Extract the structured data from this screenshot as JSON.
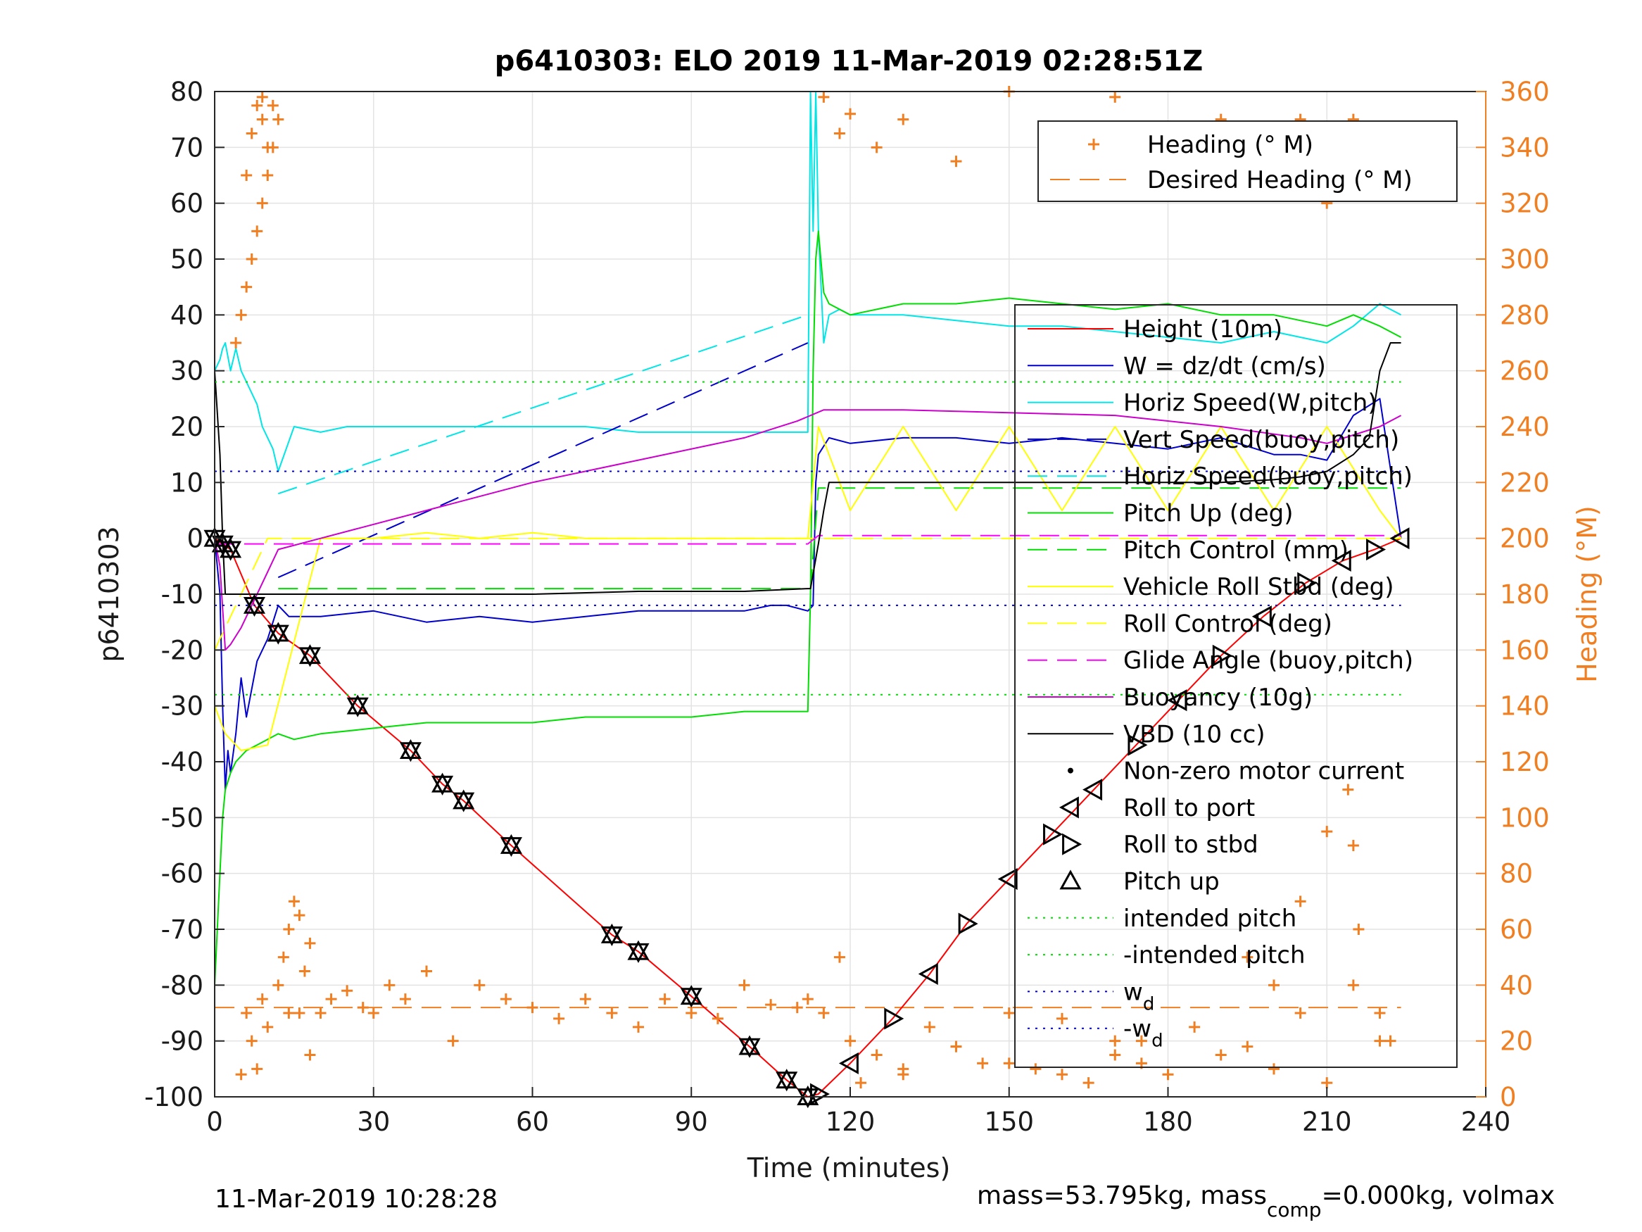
{
  "chart_data": {
    "type": "line",
    "title": "p6410303: ELO 2019 11-Mar-2019 02:28:51Z",
    "xlabel": "Time (minutes)",
    "ylabel": "p6410303",
    "y2label": "Heading (°M)",
    "xlim": [
      0,
      240
    ],
    "ylim": [
      -100,
      80
    ],
    "y2lim": [
      0,
      360
    ],
    "x_ticks": [
      "0",
      "30",
      "60",
      "90",
      "120",
      "150",
      "180",
      "210",
      "240"
    ],
    "y_ticks": [
      "80",
      "70",
      "60",
      "50",
      "40",
      "30",
      "20",
      "10",
      "0",
      "-10",
      "-20",
      "-30",
      "-40",
      "-50",
      "-60",
      "-70",
      "-80",
      "-90",
      "-100"
    ],
    "y2_ticks": [
      "360",
      "340",
      "320",
      "300",
      "280",
      "260",
      "240",
      "220",
      "200",
      "180",
      "160",
      "140",
      "120",
      "100",
      "80",
      "60",
      "40",
      "20",
      "0"
    ],
    "grid": true,
    "legend_top": [
      {
        "label": "Heading (° M)",
        "color": "#f07f22",
        "style": "plus"
      },
      {
        "label": "Desired Heading (° M)",
        "color": "#f07f22",
        "style": "dashed"
      }
    ],
    "legend_main": [
      {
        "label": "Height (10m)",
        "color": "#ff0000",
        "style": "solid"
      },
      {
        "label": "W = dz/dt (cm/s)",
        "color": "#0000cc",
        "style": "solid"
      },
      {
        "label": "Horiz Speed(W,pitch)",
        "color": "#00e6e6",
        "style": "solid"
      },
      {
        "label": "Vert Speed(buoy,pitch)",
        "color": "#0000cc",
        "style": "dashed"
      },
      {
        "label": "Horiz Speed(buoy,pitch)",
        "color": "#00e6e6",
        "style": "dashed"
      },
      {
        "label": "Pitch Up (deg)",
        "color": "#00dd00",
        "style": "solid"
      },
      {
        "label": "Pitch Control (mm)",
        "color": "#00dd00",
        "style": "dashed"
      },
      {
        "label": "Vehicle Roll Stbd (deg)",
        "color": "#ffff00",
        "style": "solid"
      },
      {
        "label": "Roll Control (deg)",
        "color": "#ffff00",
        "style": "dashed"
      },
      {
        "label": "Glide Angle (buoy,pitch)",
        "color": "#ff00ff",
        "style": "dashed"
      },
      {
        "label": "Buoyancy (10g)",
        "color": "#cc00cc",
        "style": "solid"
      },
      {
        "label": "VBD (10 cc)",
        "color": "#000000",
        "style": "solid"
      },
      {
        "label": "Non-zero motor current",
        "color": "#000000",
        "style": "dot"
      },
      {
        "label": "Roll to port",
        "color": "#000000",
        "style": "tri-left"
      },
      {
        "label": "Roll to stbd",
        "color": "#000000",
        "style": "tri-right"
      },
      {
        "label": "Pitch up",
        "color": "#000000",
        "style": "tri-up"
      },
      {
        "label": "intended pitch",
        "color": "#00dd00",
        "style": "dotted"
      },
      {
        "label": "-intended pitch",
        "color": "#00dd00",
        "style": "dotted"
      },
      {
        "label": "w",
        "sub": "d",
        "color": "#0000cc",
        "style": "dotted"
      },
      {
        "label": "-w",
        "sub": "d",
        "color": "#0000cc",
        "style": "dotted"
      }
    ],
    "series": [
      {
        "name": "Height (10m)",
        "color": "#ff0000",
        "x": [
          0,
          1.5,
          3,
          7.5,
          12,
          18,
          27,
          37,
          43,
          47,
          56,
          75,
          80,
          90,
          101,
          108,
          112,
          114,
          120,
          128,
          135,
          142,
          150,
          158,
          166,
          174,
          182,
          190,
          198,
          206,
          213,
          219,
          224
        ],
        "y": [
          0,
          -1,
          -2,
          -12,
          -17,
          -21,
          -30,
          -38,
          -44,
          -47,
          -55,
          -71,
          -74,
          -82,
          -91,
          -97,
          -100,
          -99.5,
          -94,
          -86,
          -78,
          -69,
          -61,
          -53,
          -45,
          -37,
          -29,
          -21,
          -14,
          -8,
          -4,
          -2,
          0
        ]
      },
      {
        "name": "W = dz/dt (cm/s)",
        "color": "#0000cc",
        "x": [
          0,
          1,
          1.5,
          2,
          2.5,
          3,
          4,
          5,
          6,
          8,
          10,
          12,
          14,
          20,
          30,
          40,
          50,
          60,
          70,
          80,
          90,
          100,
          105,
          108,
          110,
          112,
          113,
          113.5,
          114,
          116,
          120,
          130,
          140,
          150,
          160,
          170,
          180,
          190,
          200,
          205,
          210,
          215,
          220,
          224
        ],
        "y": [
          0,
          -10,
          -30,
          -45,
          -38,
          -42,
          -35,
          -25,
          -32,
          -22,
          -18,
          -12,
          -14,
          -14,
          -13,
          -15,
          -14,
          -15,
          -14,
          -13,
          -13,
          -13,
          -12,
          -12,
          -12.5,
          -13,
          -12,
          10,
          15,
          18,
          17,
          18,
          18,
          17,
          18,
          17,
          16,
          18,
          15,
          15,
          14,
          22,
          25,
          0
        ]
      },
      {
        "name": "Horiz Speed(W,pitch)",
        "color": "#00e6e6",
        "x": [
          0,
          1,
          1.5,
          2,
          3,
          4,
          5,
          6,
          7,
          8,
          9,
          10,
          11,
          12,
          15,
          20,
          25,
          30,
          40,
          50,
          60,
          70,
          80,
          90,
          100,
          108,
          112,
          112.5,
          113,
          113.5,
          114,
          115,
          116,
          118,
          120,
          130,
          140,
          150,
          160,
          170,
          180,
          190,
          200,
          210,
          215,
          220,
          224
        ],
        "y": [
          30,
          32,
          34,
          35,
          30,
          34,
          30,
          28,
          26,
          24,
          20,
          18,
          16,
          12,
          20,
          19,
          20,
          20,
          20,
          20,
          20,
          20,
          19,
          19,
          19,
          19,
          19,
          80,
          55,
          80,
          55,
          35,
          40,
          41,
          40,
          40,
          39,
          38,
          38,
          37,
          36,
          35,
          37,
          35,
          38,
          42,
          40
        ]
      },
      {
        "name": "Horiz Speed(buoy,pitch)",
        "color": "#00e6e6",
        "dashed": true,
        "x": [
          12,
          112
        ],
        "y": [
          8,
          40
        ]
      },
      {
        "name": "Vert Speed(buoy,pitch)",
        "color": "#0000cc",
        "dashed": true,
        "x": [
          12,
          112
        ],
        "y": [
          -7,
          35
        ]
      },
      {
        "name": "Pitch Up (deg)",
        "color": "#00dd00",
        "x": [
          0,
          1,
          1.5,
          2,
          3,
          4,
          6,
          8,
          10,
          12,
          15,
          20,
          30,
          40,
          50,
          60,
          70,
          80,
          90,
          100,
          108,
          112,
          112.5,
          113,
          113.5,
          114,
          115,
          116,
          118,
          120,
          130,
          140,
          150,
          160,
          170,
          180,
          190,
          200,
          210,
          215,
          220,
          224
        ],
        "y": [
          -80,
          -60,
          -50,
          -45,
          -42,
          -40,
          -38,
          -37,
          -36,
          -35,
          -36,
          -35,
          -34,
          -33,
          -33,
          -33,
          -32,
          -32,
          -32,
          -31,
          -31,
          -31,
          -10,
          30,
          50,
          55,
          44,
          42,
          41,
          40,
          42,
          42,
          43,
          42,
          41,
          42,
          40,
          40,
          38,
          40,
          38,
          36
        ]
      },
      {
        "name": "Pitch Control (mm)",
        "color": "#00dd00",
        "dashed": true,
        "x": [
          12,
          112,
          112.5,
          114,
          224
        ],
        "y": [
          -9,
          -9,
          -9,
          9,
          9
        ]
      },
      {
        "name": "Vehicle Roll Stbd (deg)",
        "color": "#ffff00",
        "x": [
          0,
          2,
          5,
          10,
          20,
          30,
          40,
          50,
          60,
          70,
          80,
          90,
          100,
          110,
          112,
          114,
          120,
          130,
          140,
          150,
          160,
          170,
          180,
          190,
          200,
          210,
          220,
          224
        ],
        "y": [
          -30,
          -35,
          -38,
          -37,
          0,
          0,
          1,
          0,
          1,
          0,
          0,
          0,
          0,
          0,
          0,
          20,
          5,
          20,
          5,
          20,
          5,
          20,
          5,
          20,
          5,
          20,
          5,
          0
        ]
      },
      {
        "name": "Roll Control (deg)",
        "color": "#ffff00",
        "dashed": true,
        "x": [
          0,
          10,
          112,
          224
        ],
        "y": [
          -20,
          0,
          0,
          0
        ]
      },
      {
        "name": "Glide Angle (buoy,pitch)",
        "color": "#ff00ff",
        "dashed": true,
        "x": [
          0,
          112,
          114,
          224
        ],
        "y": [
          -1,
          -1,
          0.5,
          0.5
        ]
      },
      {
        "name": "Buoyancy (10g)",
        "color": "#cc00cc",
        "x": [
          0,
          1,
          2,
          3,
          5,
          7,
          10,
          12,
          20,
          40,
          60,
          80,
          100,
          110,
          115,
          130,
          150,
          170,
          190,
          205,
          210,
          220,
          224
        ],
        "y": [
          0,
          -5,
          -20,
          -19,
          -16,
          -12,
          -6,
          -2,
          0,
          5,
          10,
          14,
          18,
          21,
          23,
          23,
          22.5,
          22,
          20,
          18,
          17,
          20,
          22
        ]
      },
      {
        "name": "VBD (10 cc)",
        "color": "#000000",
        "x": [
          0,
          1,
          1.5,
          2,
          3,
          5,
          12,
          20,
          40,
          60,
          80,
          100,
          112,
          112.5,
          114,
          115,
          116,
          120,
          150,
          180,
          190,
          200,
          205,
          210,
          215,
          218,
          220,
          222,
          224
        ],
        "y": [
          30,
          15,
          0,
          -10,
          -10,
          -10,
          -10,
          -10,
          -10,
          -10,
          -9.5,
          -9.5,
          -9,
          -9,
          -1,
          5,
          10,
          10,
          10,
          10,
          10,
          10.5,
          11,
          12,
          15,
          18,
          30,
          35,
          35
        ]
      },
      {
        "name": "intended pitch",
        "color": "#00dd00",
        "dotted": true,
        "x": [
          0,
          224
        ],
        "y": [
          28,
          28
        ]
      },
      {
        "name": "-intended pitch",
        "color": "#00dd00",
        "dotted": true,
        "x": [
          0,
          224
        ],
        "y": [
          -28,
          -28
        ]
      },
      {
        "name": "w_d",
        "color": "#0000cc",
        "dotted": true,
        "x": [
          0,
          224
        ],
        "y": [
          12,
          12
        ]
      },
      {
        "name": "-w_d",
        "color": "#0000cc",
        "dotted": true,
        "x": [
          0,
          224
        ],
        "y": [
          -12,
          -12
        ]
      }
    ],
    "desired_heading": {
      "name": "Desired Heading (° M)",
      "y2": 32,
      "x": [
        0,
        224
      ]
    },
    "heading_points": {
      "x": [
        5,
        6,
        7,
        8,
        9,
        10,
        6,
        7,
        8,
        9,
        9,
        10,
        11,
        12,
        13,
        14,
        15,
        16,
        17,
        18,
        20,
        22,
        25,
        28,
        30,
        33,
        36,
        40,
        45,
        50,
        55,
        60,
        65,
        70,
        75,
        80,
        85,
        90,
        95,
        100,
        105,
        110,
        112,
        115,
        118,
        120,
        125,
        130,
        135,
        140,
        145,
        150,
        155,
        160,
        165,
        170,
        175,
        180,
        185,
        190,
        195,
        200,
        205,
        210,
        215,
        220,
        115,
        118,
        120,
        125,
        130,
        140,
        150,
        160,
        170,
        180,
        190,
        200,
        205,
        210,
        213,
        215,
        217,
        220,
        222,
        122,
        130,
        140,
        150,
        160,
        170,
        175,
        195,
        200,
        205,
        210,
        214,
        215,
        216,
        4,
        5,
        6,
        7,
        8,
        9,
        10,
        11,
        12,
        14,
        16,
        18
      ],
      "y2": [
        8,
        30,
        20,
        10,
        35,
        25,
        330,
        345,
        355,
        358,
        350,
        340,
        355,
        40,
        50,
        30,
        70,
        30,
        45,
        15,
        30,
        35,
        38,
        32,
        30,
        40,
        35,
        45,
        20,
        40,
        35,
        32,
        28,
        35,
        30,
        25,
        35,
        30,
        28,
        40,
        33,
        32,
        35,
        30,
        50,
        20,
        15,
        10,
        25,
        18,
        12,
        30,
        10,
        28,
        5,
        20,
        12,
        8,
        25,
        15,
        18,
        10,
        30,
        5,
        40,
        20,
        358,
        345,
        352,
        340,
        350,
        335,
        360,
        345,
        358,
        340,
        350,
        330,
        350,
        320,
        345,
        350,
        340,
        30,
        20,
        5,
        8,
        18,
        12,
        8,
        15,
        20,
        50,
        40,
        70,
        95,
        110,
        90,
        60,
        270,
        280,
        290,
        300,
        310,
        320,
        330,
        340,
        350,
        60,
        65,
        55
      ]
    }
  },
  "footer": {
    "timestamp": "11-Mar-2019 10:28:28",
    "mass_prefix": "mass=53.795kg, mass",
    "mass_sub": "comp",
    "mass_suffix": "=0.000kg, volmax"
  }
}
